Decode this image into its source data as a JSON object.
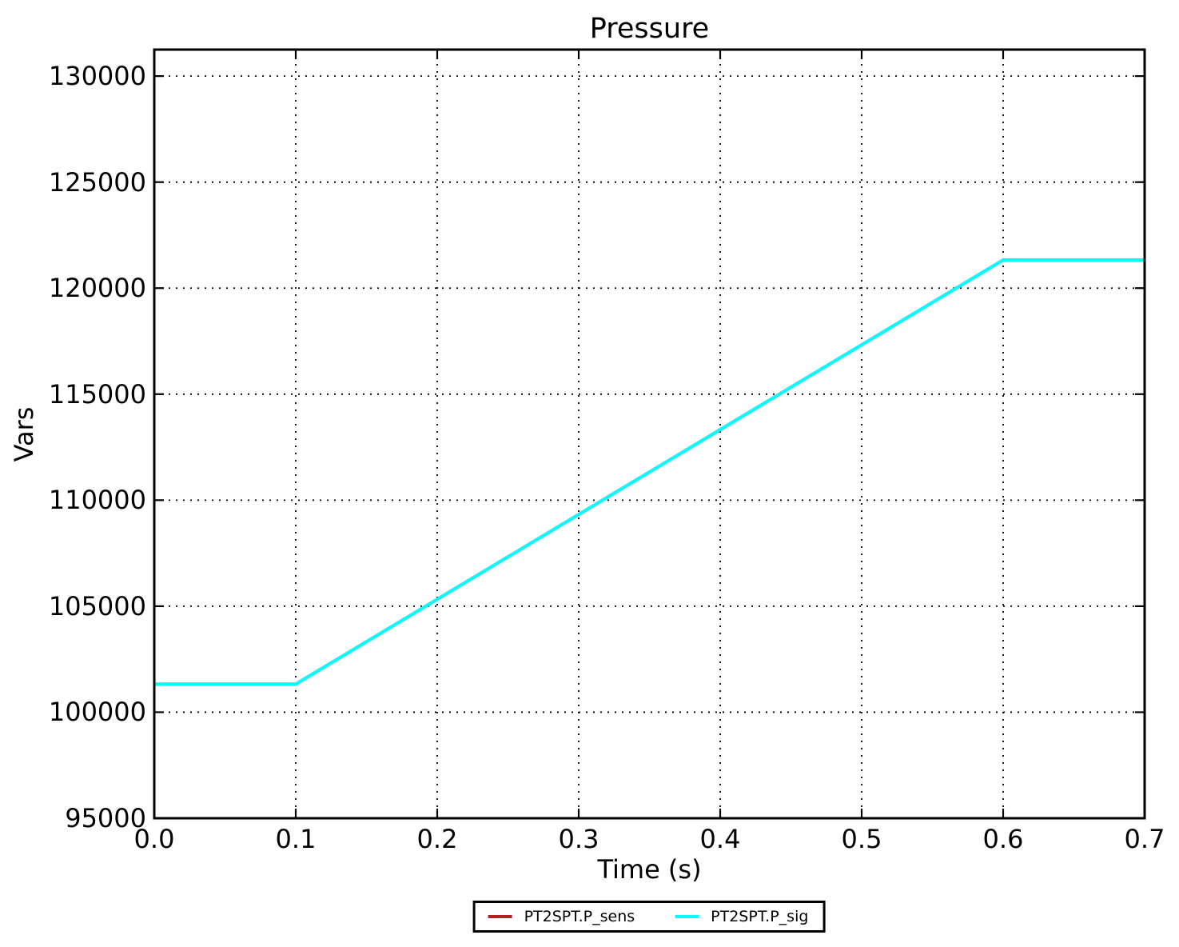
{
  "chart_data": {
    "type": "line",
    "title": "Pressure",
    "xlabel": "Time (s)",
    "ylabel": "Vars",
    "xlim": [
      0.0,
      0.7
    ],
    "ylim": [
      95000,
      131250
    ],
    "xticks": [
      "0.0",
      "0.1",
      "0.2",
      "0.3",
      "0.4",
      "0.5",
      "0.6",
      "0.7"
    ],
    "yticks": [
      "95000",
      "100000",
      "105000",
      "110000",
      "115000",
      "120000",
      "125000",
      "130000"
    ],
    "grid": "dotted",
    "grid_color": "#000000",
    "axis_color": "#000000",
    "background_color": "#ffffff",
    "legend_position": "bottom-center",
    "series": [
      {
        "name": "PT2SPT.P_sens",
        "color": "#b22222",
        "x": [
          0.0,
          0.1,
          0.6,
          0.7
        ],
        "y": [
          101325,
          101325,
          121325,
          121325
        ]
      },
      {
        "name": "PT2SPT.P_sig",
        "color": "#00ffff",
        "x": [
          0.0,
          0.1,
          0.6,
          0.7
        ],
        "y": [
          101325,
          101325,
          121325,
          121325
        ]
      }
    ]
  }
}
